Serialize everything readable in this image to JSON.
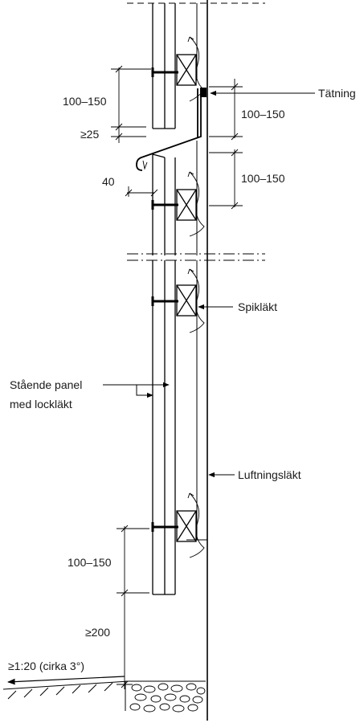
{
  "labels": {
    "tatning": "Tätning",
    "spiklakt": "Spikläkt",
    "staende_panel_line1": "Stående panel",
    "staende_panel_line2": "med lockläkt",
    "luftningslakt": "Luftningsläkt"
  },
  "dimensions": {
    "upper_left_gap": "100–150",
    "min_overlap": "≥25",
    "flashing_projection": "40",
    "right_upper": "100–150",
    "right_lower": "100–150",
    "bottom_gap": "100–150",
    "ground_clearance": "≥200"
  },
  "slope_note": "≥1:20 (cirka 3°)"
}
